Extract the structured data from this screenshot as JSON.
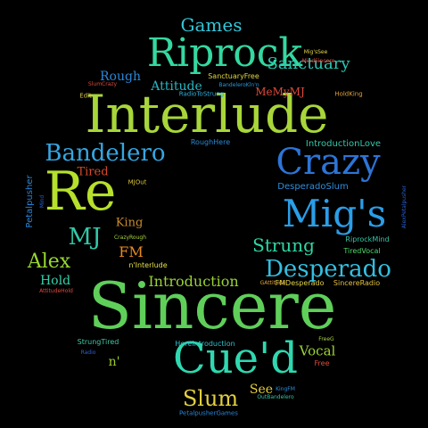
{
  "words": [
    {
      "id": "interlude",
      "text": "Interlude",
      "color": "#a8d63a"
    },
    {
      "id": "sincere",
      "text": "Sincere",
      "color": "#5fcf5a"
    },
    {
      "id": "riprock",
      "text": "Riprock",
      "color": "#34d8a0"
    },
    {
      "id": "re",
      "text": "Re",
      "color": "#b6e02c"
    },
    {
      "id": "cued",
      "text": "Cue'd",
      "color": "#2fd8b0"
    },
    {
      "id": "migs",
      "text": "Mig's",
      "color": "#2a9ee8"
    },
    {
      "id": "crazy",
      "text": "Crazy",
      "color": "#2d74d6"
    },
    {
      "id": "desperado",
      "text": "Desperado",
      "color": "#34bfe0"
    },
    {
      "id": "bandelero",
      "text": "Bandelero",
      "color": "#35a6e2"
    },
    {
      "id": "games",
      "text": "Games",
      "color": "#34c6d8"
    },
    {
      "id": "sanctuary",
      "text": "Sanctuary",
      "color": "#28c9b4"
    },
    {
      "id": "alex",
      "text": "Alex",
      "color": "#98d830"
    },
    {
      "id": "mj",
      "text": "MJ",
      "color": "#32c8a8"
    },
    {
      "id": "slum",
      "text": "Slum",
      "color": "#e2d040"
    },
    {
      "id": "strung",
      "text": "Strung",
      "color": "#2fd6a6"
    },
    {
      "id": "introduction",
      "text": "Introduction",
      "color": "#98d236"
    },
    {
      "id": "attitude",
      "text": "Attitude",
      "color": "#2bb5c2"
    },
    {
      "id": "rough",
      "text": "Rough",
      "color": "#2a86d8"
    },
    {
      "id": "fm",
      "text": "FM",
      "color": "#e88a1e"
    },
    {
      "id": "king",
      "text": "King",
      "color": "#c88a2a"
    },
    {
      "id": "tired",
      "text": "Tired",
      "color": "#d84a2c"
    },
    {
      "id": "hold",
      "text": "Hold",
      "color": "#34d0a8"
    },
    {
      "id": "vocal",
      "text": "Vocal",
      "color": "#9cd436"
    },
    {
      "id": "see",
      "text": "See",
      "color": "#e6cf3a"
    },
    {
      "id": "n",
      "text": "n'",
      "color": "#98cc30"
    },
    {
      "id": "mememymj",
      "text": "MeMyMJ",
      "color": "#e04a3c"
    },
    {
      "id": "introductionlove",
      "text": "IntroductionLove",
      "color": "#34c8a8"
    },
    {
      "id": "desperadoslum",
      "text": "DesperadoSlum",
      "color": "#2f8edc"
    },
    {
      "id": "fmdesperado",
      "text": "FMDesperado",
      "color": "#e0d24a"
    },
    {
      "id": "sincereradio",
      "text": "SincereRadio",
      "color": "#e0c040"
    },
    {
      "id": "riprockmind",
      "text": "RiprockMind",
      "color": "#35c6a6"
    },
    {
      "id": "tiredvocal",
      "text": "TiredVocal",
      "color": "#4cd86a"
    },
    {
      "id": "ninterlude",
      "text": "n'Interlude",
      "color": "#e6e14a"
    },
    {
      "id": "stringtired",
      "text": "StrungTired",
      "color": "#40c8a4"
    },
    {
      "id": "herintroduction",
      "text": "HereIntroduction",
      "color": "#2fc0c8"
    },
    {
      "id": "roughhere",
      "text": "RoughHere",
      "color": "#2a8ad8"
    },
    {
      "id": "sanctuaryfree",
      "text": "SanctuaryFree",
      "color": "#e0d840"
    },
    {
      "id": "bandeleroklnn",
      "text": "BandeleroKln'n",
      "color": "#2a98d8"
    },
    {
      "id": "radiotostrung",
      "text": "RadioToStrung",
      "color": "#34b0e0"
    },
    {
      "id": "mjout",
      "text": "MJOut",
      "color": "#d8c23a"
    },
    {
      "id": "crazyrough",
      "text": "CrazyRough",
      "color": "#a8d240"
    },
    {
      "id": "edit",
      "text": "Edit",
      "color": "#d8c84a"
    },
    {
      "id": "slumcrazy",
      "text": "SlumCrazy",
      "color": "#d84a3c"
    },
    {
      "id": "migsee",
      "text": "Mig'sSee",
      "color": "#e6d84a"
    },
    {
      "id": "mindsincere",
      "text": "MindSincere",
      "color": "#e04a3c"
    },
    {
      "id": "holdking",
      "text": "HoldKing",
      "color": "#e0a23a"
    },
    {
      "id": "attitudehold",
      "text": "AttitudeHold",
      "color": "#e04a3c"
    },
    {
      "id": "gattitude",
      "text": "GAttitude",
      "color": "#e0a23a"
    },
    {
      "id": "freeg",
      "text": "FreeG",
      "color": "#a8d240"
    },
    {
      "id": "free",
      "text": "Free",
      "color": "#e04a3c"
    },
    {
      "id": "radio",
      "text": "Radio",
      "color": "#2f5fd0"
    },
    {
      "id": "kingfm",
      "text": "KingFM",
      "color": "#2f8edc"
    },
    {
      "id": "outbandelero",
      "text": "OutBandelero",
      "color": "#34c6a6"
    },
    {
      "id": "petalpushergames",
      "text": "PetalpusherGames",
      "color": "#2a86d8"
    },
    {
      "id": "petalpusher",
      "text": "Petalpusher",
      "color": "#2a86d8"
    },
    {
      "id": "mind",
      "text": "Mind",
      "color": "#2a5fd0"
    },
    {
      "id": "alexpetalpusher",
      "text": "AlexPetalpusher",
      "color": "#2a5fd0"
    }
  ]
}
